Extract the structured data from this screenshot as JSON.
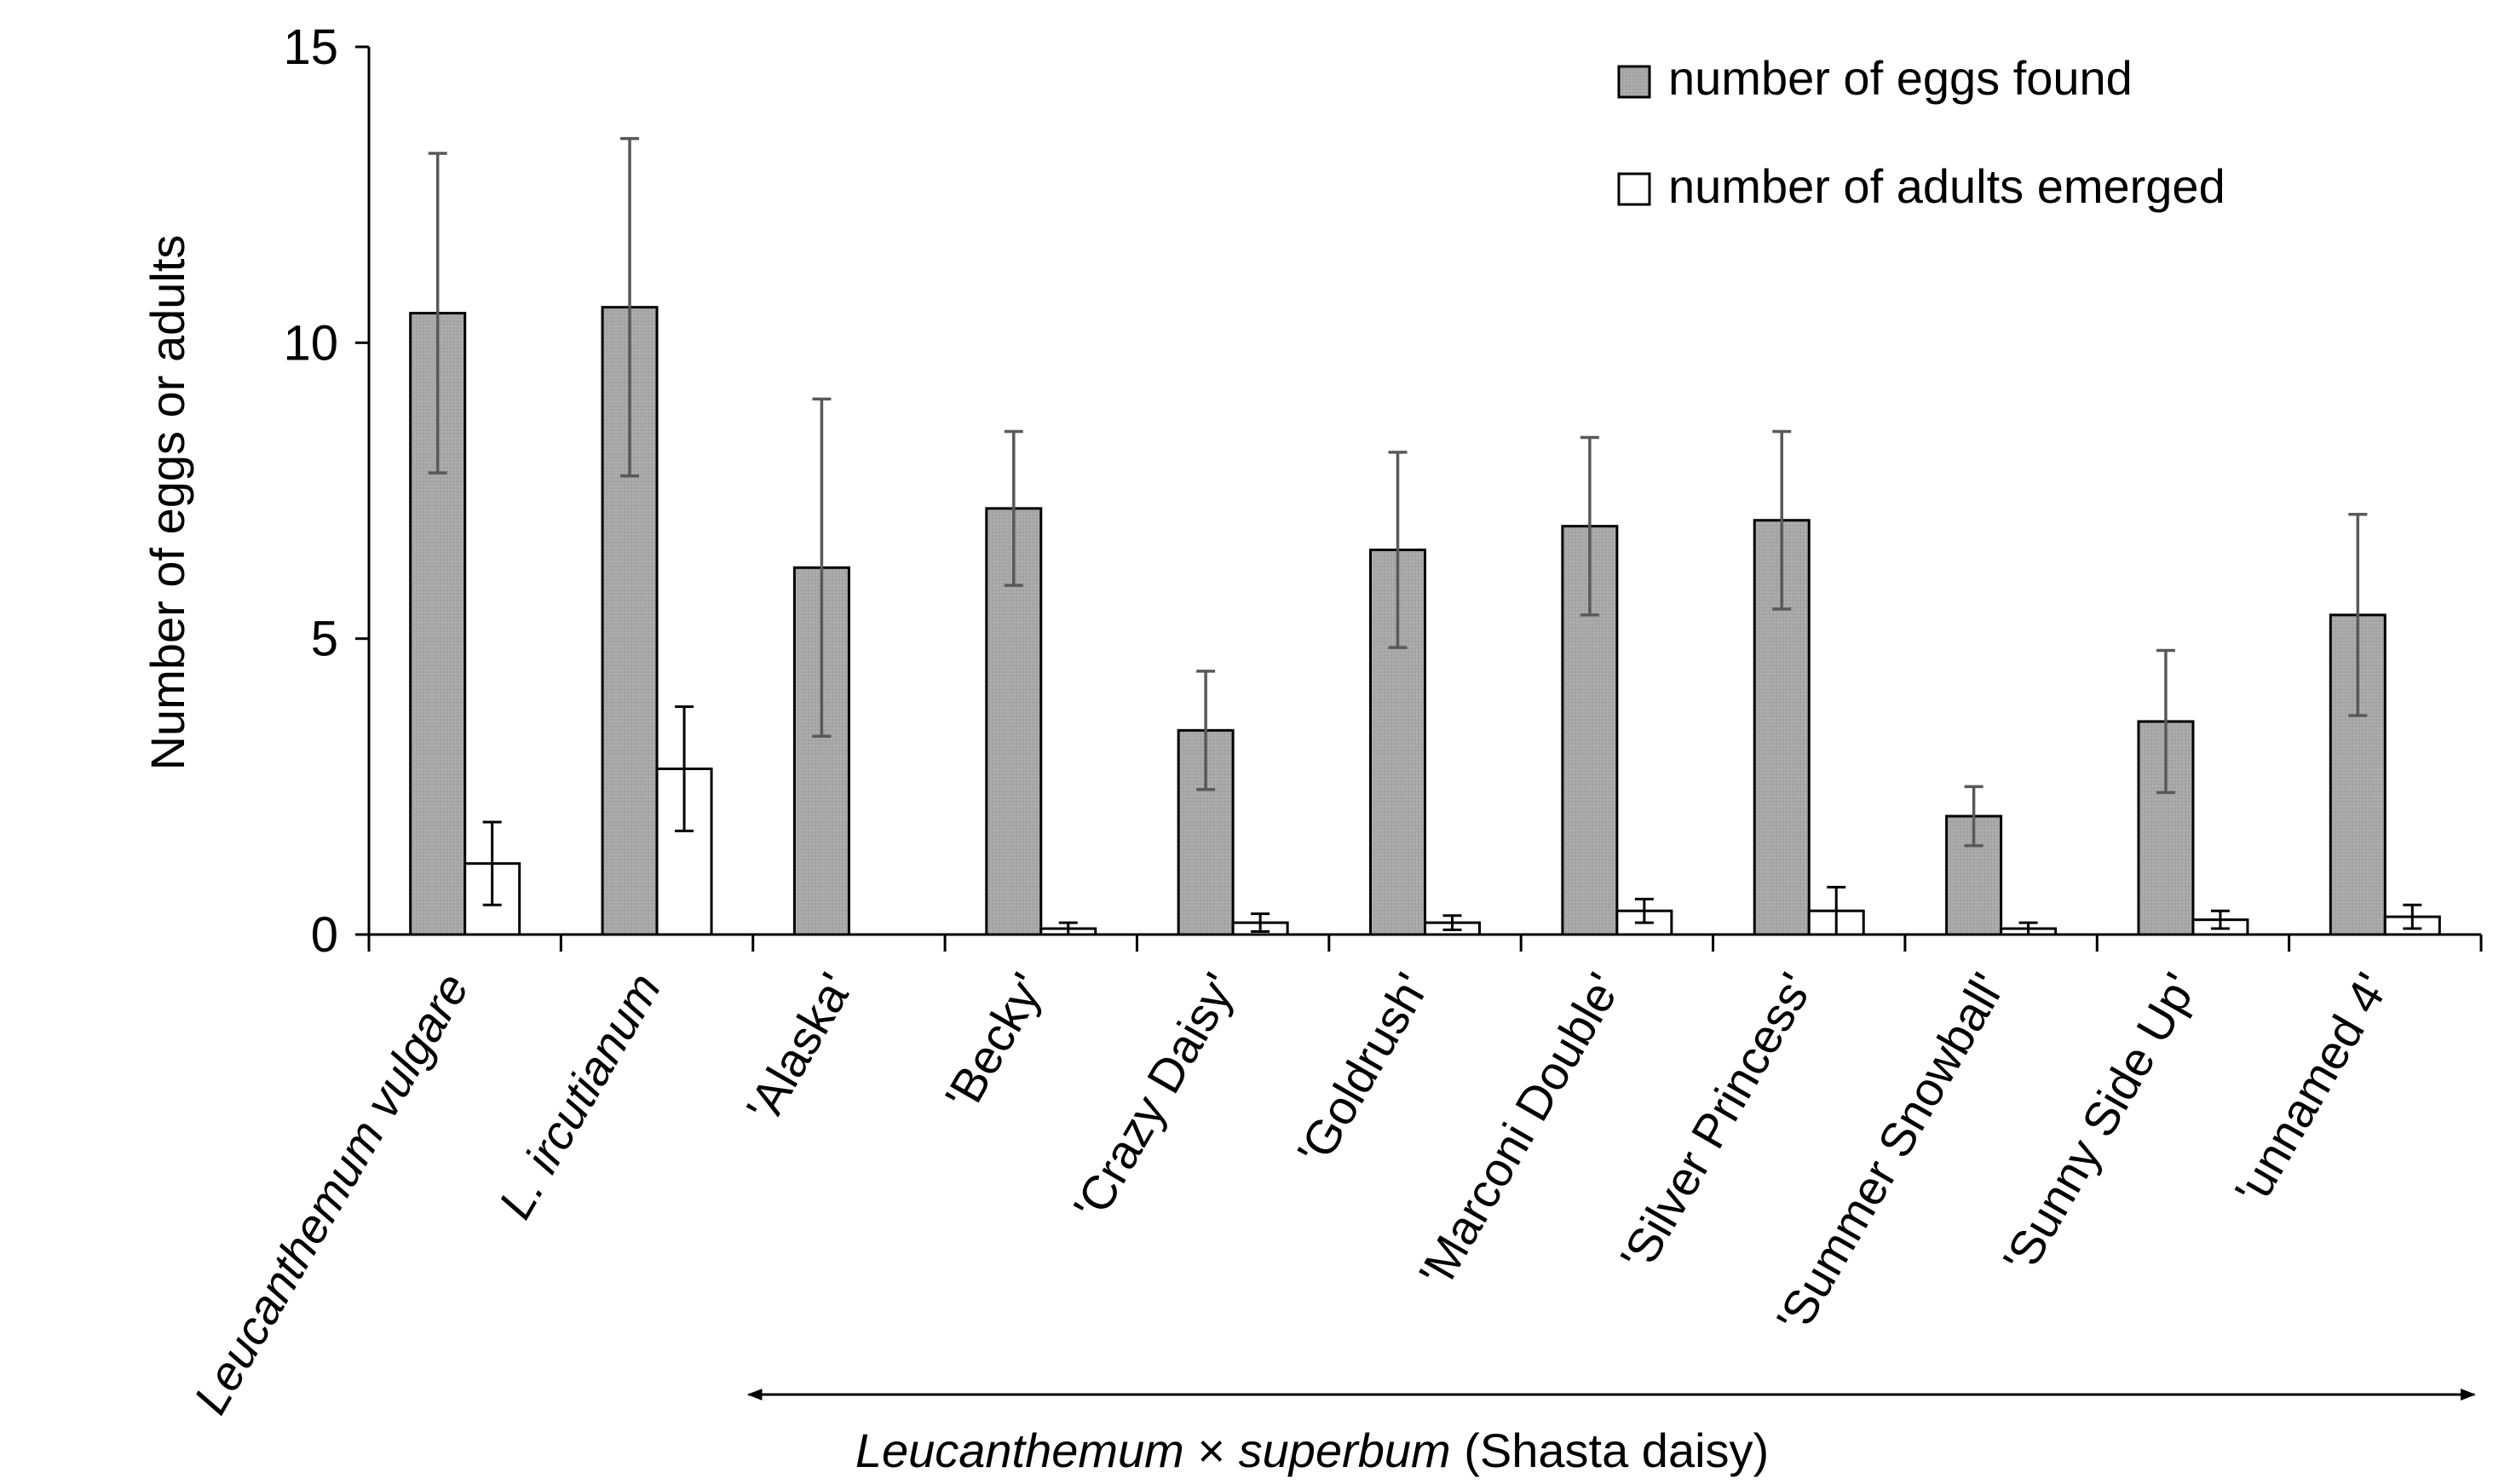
{
  "chart_data": {
    "type": "bar",
    "title": "",
    "xlabel": "",
    "ylabel": "Number of eggs or adults",
    "ylim": [
      0,
      15
    ],
    "yticks": [
      0,
      5,
      10,
      15
    ],
    "grid": false,
    "legend_position": "top-right",
    "categories": [
      {
        "italic": "Leucanthemum",
        "plain": " vulgare",
        "italic_all": true
      },
      {
        "italic": "L. ircutianum",
        "plain": "",
        "italic_all": true
      },
      {
        "italic": "",
        "plain": "'Alaska'",
        "italic_all": false
      },
      {
        "italic": "",
        "plain": "'Becky'",
        "italic_all": false
      },
      {
        "italic": "",
        "plain": "'Crazy Daisy'",
        "italic_all": false
      },
      {
        "italic": "",
        "plain": "'Goldrush'",
        "italic_all": false
      },
      {
        "italic": "",
        "plain": "'Marconi Double'",
        "italic_all": false
      },
      {
        "italic": "",
        "plain": "'Silver Princess'",
        "italic_all": false
      },
      {
        "italic": "",
        "plain": "'Summer Snowball'",
        "italic_all": false
      },
      {
        "italic": "",
        "plain": "'Sunny Side Up'",
        "italic_all": false
      },
      {
        "italic": "",
        "plain": "'unnamed 4'",
        "italic_all": false
      }
    ],
    "series": [
      {
        "name": "number of eggs found",
        "color": "#a6a6a6",
        "values": [
          10.5,
          10.6,
          6.2,
          7.2,
          3.45,
          6.5,
          6.9,
          7.0,
          2.0,
          3.6,
          5.4
        ],
        "errors": [
          2.7,
          2.85,
          2.85,
          1.3,
          1.0,
          1.65,
          1.5,
          1.5,
          0.5,
          1.2,
          1.7
        ]
      },
      {
        "name": "number of adults emerged",
        "color": "#ffffff",
        "values": [
          1.2,
          2.8,
          0.0,
          0.1,
          0.2,
          0.2,
          0.4,
          0.4,
          0.1,
          0.25,
          0.3
        ],
        "errors": [
          0.7,
          1.05,
          0.0,
          0.1,
          0.15,
          0.12,
          0.2,
          0.4,
          0.1,
          0.15,
          0.2
        ]
      }
    ],
    "group_annotation": {
      "italic_a": "Leucanthemum",
      "plain_b": " × ",
      "italic_c": "superbum",
      "plain_d": " (Shasta daisy)",
      "from_category": 2,
      "to_category": 10
    }
  }
}
